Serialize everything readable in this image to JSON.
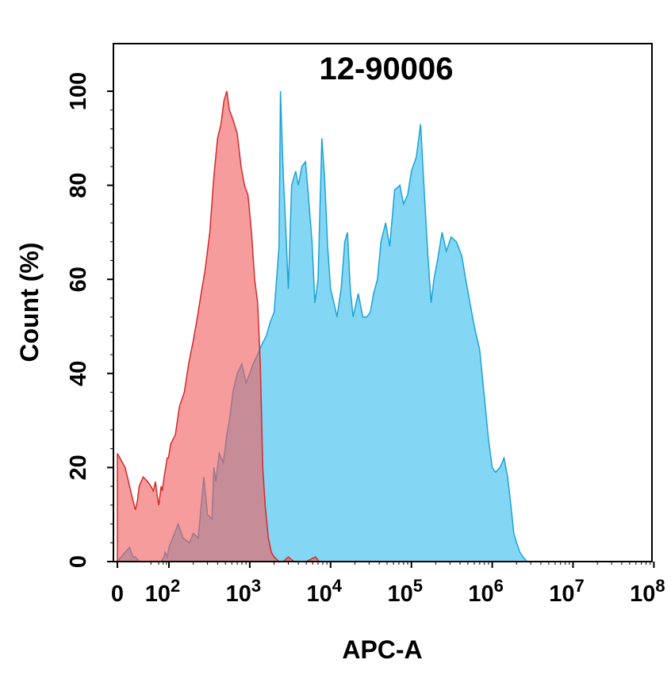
{
  "chart_data": {
    "type": "area",
    "title": "12-90006",
    "xlabel": "APC-A",
    "ylabel": "Count  (%)",
    "xscale": "biexponential",
    "ylim": [
      0,
      100
    ],
    "y_ticks": [
      "0",
      "20",
      "40",
      "60",
      "80",
      "100"
    ],
    "x_ticks": [
      {
        "value": 0,
        "base": "0",
        "exp": ""
      },
      {
        "value": 100,
        "base": "10",
        "exp": "2"
      },
      {
        "value": 1000,
        "base": "10",
        "exp": "3"
      },
      {
        "value": 10000,
        "base": "10",
        "exp": "4"
      },
      {
        "value": 100000,
        "base": "10",
        "exp": "5"
      },
      {
        "value": 1000000,
        "base": "10",
        "exp": "6"
      },
      {
        "value": 10000000,
        "base": "10",
        "exp": "7"
      },
      {
        "value": 100000000,
        "base": "10",
        "exp": "8"
      }
    ],
    "grid": false,
    "series": [
      {
        "color": "#1aa3d6",
        "fill": "#6fd0f2",
        "points": [
          [
            0,
            0
          ],
          [
            2,
            2
          ],
          [
            3,
            3
          ],
          [
            4,
            1
          ],
          [
            5,
            1
          ],
          [
            7,
            0
          ],
          [
            50,
            0
          ],
          [
            65,
            1
          ],
          [
            70,
            2
          ],
          [
            85,
            1
          ],
          [
            100,
            3
          ],
          [
            130,
            8
          ],
          [
            150,
            5
          ],
          [
            180,
            4
          ],
          [
            200,
            6
          ],
          [
            230,
            5
          ],
          [
            270,
            18
          ],
          [
            300,
            10
          ],
          [
            340,
            9
          ],
          [
            360,
            20
          ],
          [
            380,
            17
          ],
          [
            420,
            23
          ],
          [
            470,
            21
          ],
          [
            520,
            27
          ],
          [
            560,
            30
          ],
          [
            620,
            36
          ],
          [
            700,
            40
          ],
          [
            800,
            42
          ],
          [
            900,
            38
          ],
          [
            1000,
            40
          ],
          [
            1100,
            42
          ],
          [
            1250,
            44
          ],
          [
            1400,
            46
          ],
          [
            1600,
            48
          ],
          [
            1800,
            51
          ],
          [
            2000,
            53
          ],
          [
            2300,
            67
          ],
          [
            2400,
            100
          ],
          [
            2600,
            82
          ],
          [
            2800,
            70
          ],
          [
            3000,
            58
          ],
          [
            3300,
            80
          ],
          [
            3700,
            83
          ],
          [
            4000,
            80
          ],
          [
            4400,
            84
          ],
          [
            4900,
            85
          ],
          [
            5300,
            78
          ],
          [
            5900,
            68
          ],
          [
            6400,
            55
          ],
          [
            7000,
            60
          ],
          [
            7800,
            90
          ],
          [
            8400,
            82
          ],
          [
            9200,
            67
          ],
          [
            10000,
            58
          ],
          [
            11000,
            55
          ],
          [
            12000,
            52
          ],
          [
            13500,
            58
          ],
          [
            15000,
            68
          ],
          [
            16200,
            70
          ],
          [
            17500,
            58
          ],
          [
            19000,
            52
          ],
          [
            22000,
            57
          ],
          [
            25000,
            52
          ],
          [
            28000,
            52
          ],
          [
            31000,
            53
          ],
          [
            34000,
            57
          ],
          [
            38000,
            60
          ],
          [
            42000,
            68
          ],
          [
            48000,
            72
          ],
          [
            54000,
            67
          ],
          [
            62000,
            79
          ],
          [
            72000,
            80
          ],
          [
            80000,
            76
          ],
          [
            90000,
            78
          ],
          [
            100000,
            83
          ],
          [
            115000,
            86
          ],
          [
            130000,
            93
          ],
          [
            145000,
            78
          ],
          [
            160000,
            65
          ],
          [
            175000,
            55
          ],
          [
            190000,
            60
          ],
          [
            210000,
            64
          ],
          [
            240000,
            70
          ],
          [
            270000,
            66
          ],
          [
            310000,
            69
          ],
          [
            360000,
            68
          ],
          [
            420000,
            65
          ],
          [
            470000,
            60
          ],
          [
            530000,
            55
          ],
          [
            600000,
            50
          ],
          [
            700000,
            45
          ],
          [
            800000,
            35
          ],
          [
            900000,
            26
          ],
          [
            1000000,
            20
          ],
          [
            1100000,
            19
          ],
          [
            1250000,
            20
          ],
          [
            1400000,
            22
          ],
          [
            1550000,
            18
          ],
          [
            1700000,
            12
          ],
          [
            1850000,
            6
          ],
          [
            2000000,
            4
          ],
          [
            2200000,
            2
          ],
          [
            2400000,
            1
          ],
          [
            2700000,
            0
          ]
        ]
      },
      {
        "color": "#d42a2a",
        "fill": "#f25a5a",
        "points": [
          [
            0,
            23
          ],
          [
            2,
            20
          ],
          [
            4,
            13
          ],
          [
            5,
            11
          ],
          [
            6,
            13
          ],
          [
            7,
            16
          ],
          [
            10,
            18
          ],
          [
            15,
            17
          ],
          [
            20,
            16
          ],
          [
            25,
            15
          ],
          [
            30,
            17
          ],
          [
            35,
            14
          ],
          [
            40,
            12
          ],
          [
            45,
            14
          ],
          [
            50,
            16
          ],
          [
            55,
            15
          ],
          [
            65,
            18
          ],
          [
            75,
            20
          ],
          [
            85,
            22
          ],
          [
            95,
            22
          ],
          [
            105,
            25
          ],
          [
            120,
            27
          ],
          [
            135,
            33
          ],
          [
            155,
            36
          ],
          [
            175,
            42
          ],
          [
            200,
            47
          ],
          [
            225,
            52
          ],
          [
            250,
            57
          ],
          [
            280,
            62
          ],
          [
            320,
            70
          ],
          [
            360,
            82
          ],
          [
            400,
            90
          ],
          [
            440,
            93
          ],
          [
            480,
            98
          ],
          [
            520,
            100
          ],
          [
            560,
            96
          ],
          [
            620,
            94
          ],
          [
            700,
            91
          ],
          [
            780,
            84
          ],
          [
            860,
            80
          ],
          [
            950,
            78
          ],
          [
            1050,
            70
          ],
          [
            1150,
            60
          ],
          [
            1250,
            55
          ],
          [
            1350,
            42
          ],
          [
            1450,
            20
          ],
          [
            1550,
            12
          ],
          [
            1700,
            5
          ],
          [
            1850,
            2
          ],
          [
            2000,
            1
          ],
          [
            2300,
            0
          ],
          [
            2600,
            0
          ],
          [
            3000,
            1
          ],
          [
            3500,
            0
          ],
          [
            5000,
            0
          ],
          [
            6500,
            1
          ],
          [
            7200,
            0
          ]
        ]
      }
    ]
  }
}
